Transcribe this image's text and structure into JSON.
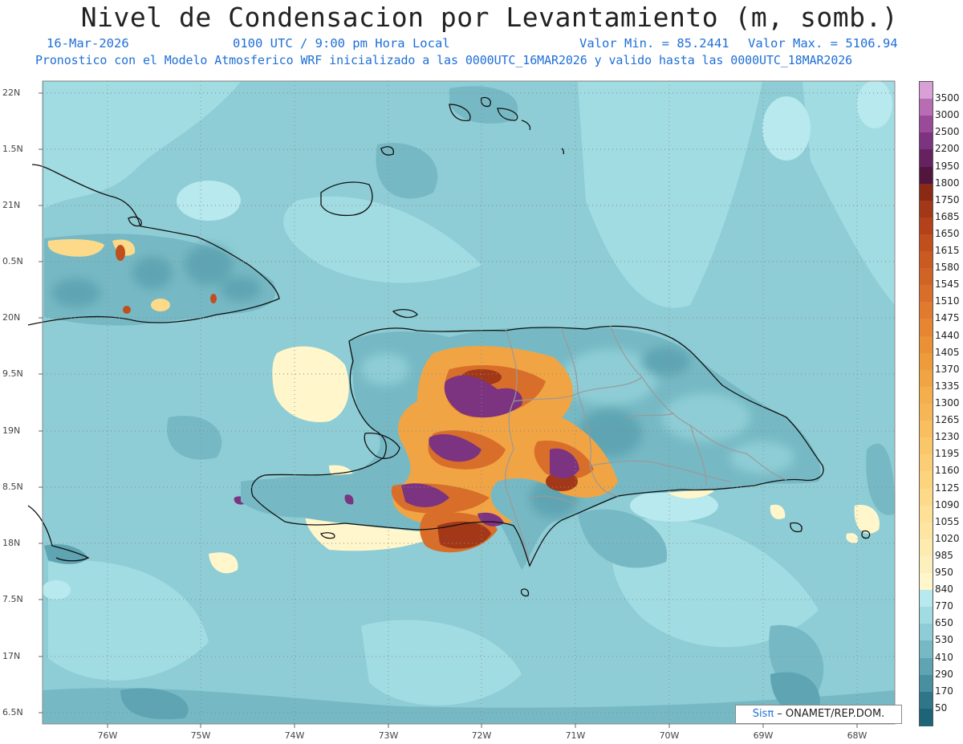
{
  "header": {
    "title": "Nivel de Condensacion por Levantamiento (m, somb.)",
    "date": "16-Mar-2026",
    "time": "0100 UTC / 9:00 pm Hora Local",
    "min_label": "Valor Min. = 85.2441",
    "max_label": "Valor Max. = 5106.94",
    "model_line": "Pronostico con el Modelo Atmosferico WRF inicializado a las 0000UTC_16MAR2026 y valido hasta las  0000UTC_18MAR2026"
  },
  "credit": {
    "brand": "Sisπ",
    "text": " – ONAMET/REP.DOM."
  },
  "axes": {
    "lat_labels": [
      "22N",
      "1.5N",
      "21N",
      "0.5N",
      "20N",
      "9.5N",
      "19N",
      "8.5N",
      "18N",
      "7.5N",
      "17N",
      "6.5N"
    ],
    "lon_labels": [
      "76W",
      "75W",
      "74W",
      "73W",
      "72W",
      "71W",
      "70W",
      "69W",
      "68W"
    ]
  },
  "colorbar": {
    "levels": [
      "3500",
      "3000",
      "2500",
      "2200",
      "1950",
      "1800",
      "1750",
      "1685",
      "1650",
      "1615",
      "1580",
      "1545",
      "1510",
      "1475",
      "1440",
      "1405",
      "1370",
      "1335",
      "1300",
      "1265",
      "1230",
      "1195",
      "1160",
      "1125",
      "1090",
      "1055",
      "1020",
      "985",
      "950",
      "840",
      "770",
      "650",
      "530",
      "410",
      "290",
      "170",
      "50"
    ],
    "colors": [
      "#d8a0d6",
      "#b86cb4",
      "#9a4a98",
      "#7c3380",
      "#662260",
      "#52163e",
      "#8a2a14",
      "#a23818",
      "#b3421a",
      "#c04f1e",
      "#c85a22",
      "#d06426",
      "#d86e2a",
      "#e07a2e",
      "#e68632",
      "#ea9036",
      "#ee9b3c",
      "#f1a444",
      "#f4ae4c",
      "#f6b656",
      "#f8be60",
      "#f9c66a",
      "#fbcd74",
      "#fcd47e",
      "#fdda8a",
      "#fee096",
      "#fee6a2",
      "#fdebb0",
      "#fcf0bc",
      "#fff6cc",
      "#b7e9ee",
      "#a2dce3",
      "#8ecdd5",
      "#76b9c4",
      "#5ea4b2",
      "#4890a0",
      "#2e7688",
      "#1d6476"
    ]
  }
}
